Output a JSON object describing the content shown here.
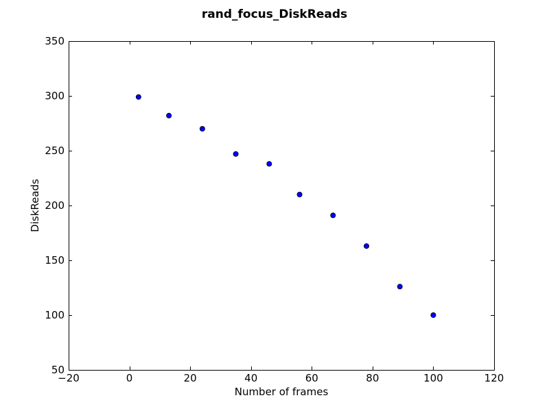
{
  "chart_data": {
    "type": "scatter",
    "title": "rand_focus_DiskReads",
    "xlabel": "Number of frames",
    "ylabel": "DiskReads",
    "xlim": [
      -20,
      120
    ],
    "ylim": [
      50,
      350
    ],
    "xticks": [
      -20,
      0,
      20,
      40,
      60,
      80,
      100,
      120
    ],
    "yticks": [
      50,
      100,
      150,
      200,
      250,
      300,
      350
    ],
    "xtick_labels": [
      "−20",
      "0",
      "20",
      "40",
      "60",
      "80",
      "100",
      "120"
    ],
    "ytick_labels": [
      "50",
      "100",
      "150",
      "200",
      "250",
      "300",
      "350"
    ],
    "grid": false,
    "marker_color": "#0000ff",
    "series": [
      {
        "x": [
          3,
          13,
          24,
          35,
          46,
          56,
          67,
          78,
          89,
          100
        ],
        "y": [
          299,
          282,
          270,
          247,
          238,
          210,
          191,
          163,
          126,
          100
        ]
      }
    ]
  }
}
